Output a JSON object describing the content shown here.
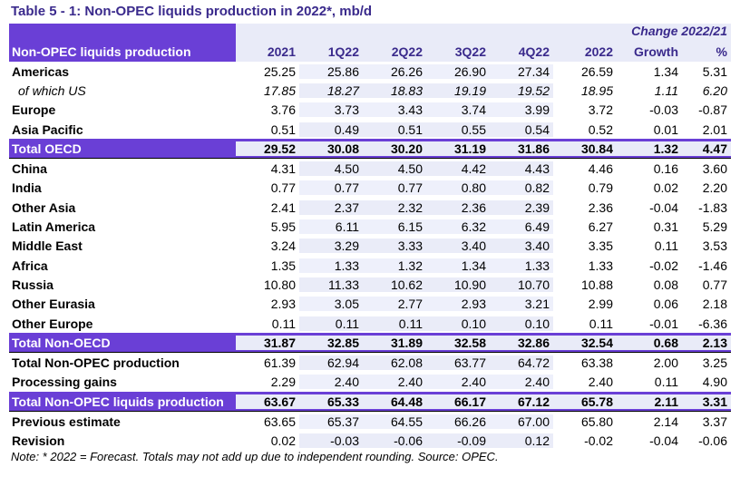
{
  "title": "Table 5 - 1: Non-OPEC liquids production in 2022*, mb/d",
  "header": {
    "change_label": "Change 2022/21",
    "row_label": "Non-OPEC liquids production",
    "columns": [
      "2021",
      "1Q22",
      "2Q22",
      "3Q22",
      "4Q22",
      "2022",
      "Growth",
      "%"
    ]
  },
  "rows": [
    {
      "label": "Americas",
      "values": [
        "25.25",
        "25.86",
        "26.26",
        "26.90",
        "27.34",
        "26.59",
        "1.34",
        "5.31"
      ],
      "style": "bold"
    },
    {
      "label": "of which US",
      "values": [
        "17.85",
        "18.27",
        "18.83",
        "19.19",
        "19.52",
        "18.95",
        "1.11",
        "6.20"
      ],
      "style": "italic"
    },
    {
      "label": "Europe",
      "values": [
        "3.76",
        "3.73",
        "3.43",
        "3.74",
        "3.99",
        "3.72",
        "-0.03",
        "-0.87"
      ],
      "style": "bold"
    },
    {
      "label": "Asia Pacific",
      "values": [
        "0.51",
        "0.49",
        "0.51",
        "0.55",
        "0.54",
        "0.52",
        "0.01",
        "2.01"
      ],
      "style": "bold"
    },
    {
      "label": "Total OECD",
      "values": [
        "29.52",
        "30.08",
        "30.20",
        "31.19",
        "31.86",
        "30.84",
        "1.32",
        "4.47"
      ],
      "style": "total"
    },
    {
      "label": "China",
      "values": [
        "4.31",
        "4.50",
        "4.50",
        "4.42",
        "4.43",
        "4.46",
        "0.16",
        "3.60"
      ],
      "style": "bold"
    },
    {
      "label": "India",
      "values": [
        "0.77",
        "0.77",
        "0.77",
        "0.80",
        "0.82",
        "0.79",
        "0.02",
        "2.20"
      ],
      "style": "bold"
    },
    {
      "label": "Other Asia",
      "values": [
        "2.41",
        "2.37",
        "2.32",
        "2.36",
        "2.39",
        "2.36",
        "-0.04",
        "-1.83"
      ],
      "style": "bold"
    },
    {
      "label": "Latin America",
      "values": [
        "5.95",
        "6.11",
        "6.15",
        "6.32",
        "6.49",
        "6.27",
        "0.31",
        "5.29"
      ],
      "style": "bold"
    },
    {
      "label": "Middle East",
      "values": [
        "3.24",
        "3.29",
        "3.33",
        "3.40",
        "3.40",
        "3.35",
        "0.11",
        "3.53"
      ],
      "style": "bold"
    },
    {
      "label": "Africa",
      "values": [
        "1.35",
        "1.33",
        "1.32",
        "1.34",
        "1.33",
        "1.33",
        "-0.02",
        "-1.46"
      ],
      "style": "bold"
    },
    {
      "label": "Russia",
      "values": [
        "10.80",
        "11.33",
        "10.62",
        "10.90",
        "10.70",
        "10.88",
        "0.08",
        "0.77"
      ],
      "style": "bold"
    },
    {
      "label": "Other Eurasia",
      "values": [
        "2.93",
        "3.05",
        "2.77",
        "2.93",
        "3.21",
        "2.99",
        "0.06",
        "2.18"
      ],
      "style": "bold"
    },
    {
      "label": "Other Europe",
      "values": [
        "0.11",
        "0.11",
        "0.11",
        "0.10",
        "0.10",
        "0.11",
        "-0.01",
        "-6.36"
      ],
      "style": "bold"
    },
    {
      "label": "Total Non-OECD",
      "values": [
        "31.87",
        "32.85",
        "31.89",
        "32.58",
        "32.86",
        "32.54",
        "0.68",
        "2.13"
      ],
      "style": "total"
    },
    {
      "label": "Total Non-OPEC production",
      "values": [
        "61.39",
        "62.94",
        "62.08",
        "63.77",
        "64.72",
        "63.38",
        "2.00",
        "3.25"
      ],
      "style": "bold"
    },
    {
      "label": "Processing gains",
      "values": [
        "2.29",
        "2.40",
        "2.40",
        "2.40",
        "2.40",
        "2.40",
        "0.11",
        "4.90"
      ],
      "style": "bold"
    },
    {
      "label": "Total Non-OPEC liquids production",
      "values": [
        "63.67",
        "65.33",
        "64.48",
        "66.17",
        "67.12",
        "65.78",
        "2.11",
        "3.31"
      ],
      "style": "total"
    },
    {
      "label": "Previous estimate",
      "values": [
        "63.65",
        "65.37",
        "64.55",
        "66.26",
        "67.00",
        "65.80",
        "2.14",
        "3.37"
      ],
      "style": "bold"
    },
    {
      "label": "Revision",
      "values": [
        "0.02",
        "-0.03",
        "-0.06",
        "-0.09",
        "0.12",
        "-0.02",
        "-0.04",
        "-0.06"
      ],
      "style": "bold"
    }
  ],
  "note": "Note: * 2022 = Forecast. Totals may not add up due to independent rounding. Source: OPEC."
}
